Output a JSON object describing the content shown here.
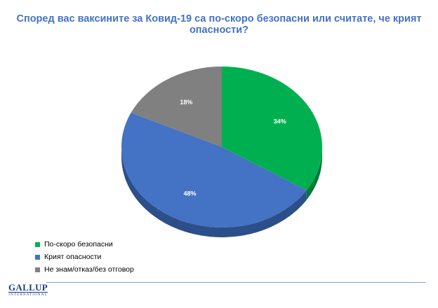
{
  "chart_data": {
    "type": "pie",
    "title": "Според вас ваксините за Ковид-19 са по-скоро безопасни или считате, че крият опасности?",
    "categories": [
      "По-скоро безопасни",
      "Крият опасности",
      "Не знам/отказ/без отговор"
    ],
    "values": [
      34,
      48,
      18
    ],
    "labels": [
      "34%",
      "48%",
      "18%"
    ],
    "colors": [
      "#00b050",
      "#4472c4",
      "#808080"
    ],
    "side_colors": [
      "#007a38",
      "#2c4f8a",
      "#595959"
    ],
    "legend_position": "bottom-left",
    "three_d": true
  },
  "logo": {
    "main": "GALLUP",
    "sub": "INTERNATIONAL"
  }
}
